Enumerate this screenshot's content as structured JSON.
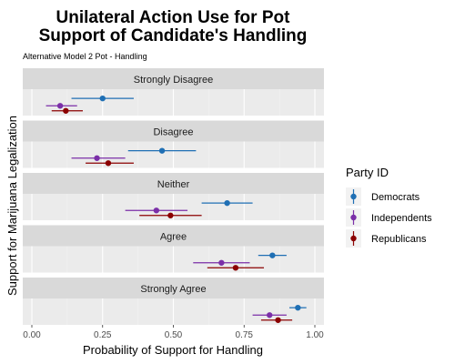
{
  "chart_data": {
    "type": "scatter",
    "subtype": "dot-and-interval (faceted)",
    "title_line1": "Unilateral Action Use for Pot",
    "title_line2": "Support of Candidate's Handling",
    "subtitle": "Alternative Model 2 Pot - Handling",
    "xlabel": "Probability of Support for Handling",
    "ylabel": "Support for Marijuana Legalization",
    "xlim": [
      0,
      1
    ],
    "xticks": [
      0,
      0.25,
      0.5,
      0.75,
      1
    ],
    "xtick_labels": [
      "0.00",
      "0.25",
      "0.50",
      "0.75",
      "1.00"
    ],
    "grid": true,
    "legend_title": "Party ID",
    "legend_position": "right",
    "series": [
      {
        "name": "Democrats",
        "color": "#1f6fb4"
      },
      {
        "name": "Independents",
        "color": "#7b2fa8"
      },
      {
        "name": "Republicans",
        "color": "#8b0000"
      }
    ],
    "facets": [
      {
        "label": "Strongly Disagree",
        "values": [
          {
            "series": "Democrats",
            "estimate": 0.25,
            "lower": 0.14,
            "upper": 0.36
          },
          {
            "series": "Independents",
            "estimate": 0.1,
            "lower": 0.05,
            "upper": 0.16
          },
          {
            "series": "Republicans",
            "estimate": 0.12,
            "lower": 0.07,
            "upper": 0.18
          }
        ]
      },
      {
        "label": "Disagree",
        "values": [
          {
            "series": "Democrats",
            "estimate": 0.46,
            "lower": 0.34,
            "upper": 0.58
          },
          {
            "series": "Independents",
            "estimate": 0.23,
            "lower": 0.14,
            "upper": 0.33
          },
          {
            "series": "Republicans",
            "estimate": 0.27,
            "lower": 0.19,
            "upper": 0.36
          }
        ]
      },
      {
        "label": "Neither",
        "values": [
          {
            "series": "Democrats",
            "estimate": 0.69,
            "lower": 0.6,
            "upper": 0.78
          },
          {
            "series": "Independents",
            "estimate": 0.44,
            "lower": 0.33,
            "upper": 0.55
          },
          {
            "series": "Republicans",
            "estimate": 0.49,
            "lower": 0.38,
            "upper": 0.6
          }
        ]
      },
      {
        "label": "Agree",
        "values": [
          {
            "series": "Democrats",
            "estimate": 0.85,
            "lower": 0.8,
            "upper": 0.9
          },
          {
            "series": "Independents",
            "estimate": 0.67,
            "lower": 0.57,
            "upper": 0.77
          },
          {
            "series": "Republicans",
            "estimate": 0.72,
            "lower": 0.62,
            "upper": 0.82
          }
        ]
      },
      {
        "label": "Strongly Agree",
        "values": [
          {
            "series": "Democrats",
            "estimate": 0.94,
            "lower": 0.91,
            "upper": 0.97
          },
          {
            "series": "Independents",
            "estimate": 0.84,
            "lower": 0.78,
            "upper": 0.9
          },
          {
            "series": "Republicans",
            "estimate": 0.87,
            "lower": 0.81,
            "upper": 0.92
          }
        ]
      }
    ]
  }
}
